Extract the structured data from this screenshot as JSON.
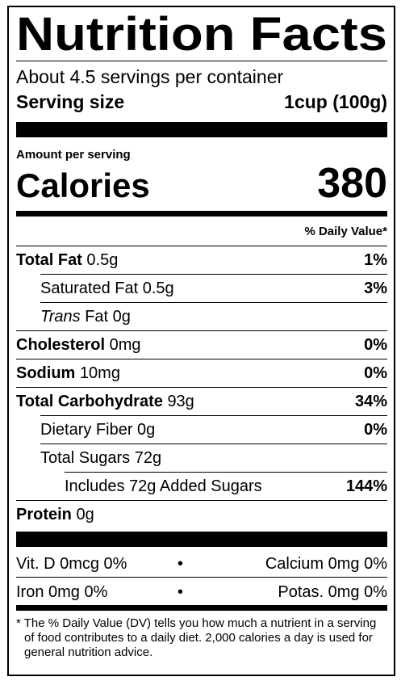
{
  "title": "Nutrition Facts",
  "servings": "About 4.5 servings per container",
  "serving_size": {
    "label": "Serving size",
    "value": "1cup (100g)"
  },
  "amount_per_serving": "Amount per serving",
  "calories": {
    "label": "Calories",
    "value": 380
  },
  "daily_value_header": "% Daily Value*",
  "nutrients": [
    {
      "name": "Total Fat",
      "amount": "0.5g",
      "dv": "1%"
    },
    {
      "name": "Saturated Fat 0.5g",
      "dv": "3%"
    },
    {
      "name_italic": "Trans",
      "name": "Fat 0g"
    },
    {
      "name": "Cholesterol",
      "amount": "0mg",
      "dv": "0%"
    },
    {
      "name": "Sodium",
      "amount": "10mg",
      "dv": "0%"
    },
    {
      "name": "Total Carbohydrate",
      "amount": "93g",
      "dv": "34%"
    },
    {
      "name": "Dietary Fiber 0g",
      "dv": "0%"
    },
    {
      "name": "Total Sugars 72g"
    },
    {
      "name": "Includes 72g Added Sugars",
      "dv": "144%"
    },
    {
      "name": "Protein",
      "amount": "0g"
    }
  ],
  "vitamins": [
    [
      "Vit. D 0mcg 0%",
      "Calcium 0mg 0%"
    ],
    [
      "Iron 0mg 0%",
      "Potas. 0mg 0%"
    ]
  ],
  "separator": "•",
  "footnote": "* The % Daily Value (DV) tells you how much a nutrient in a serving of food contributes to a daily diet. 2,000 calories a day is used for general nutrition advice."
}
